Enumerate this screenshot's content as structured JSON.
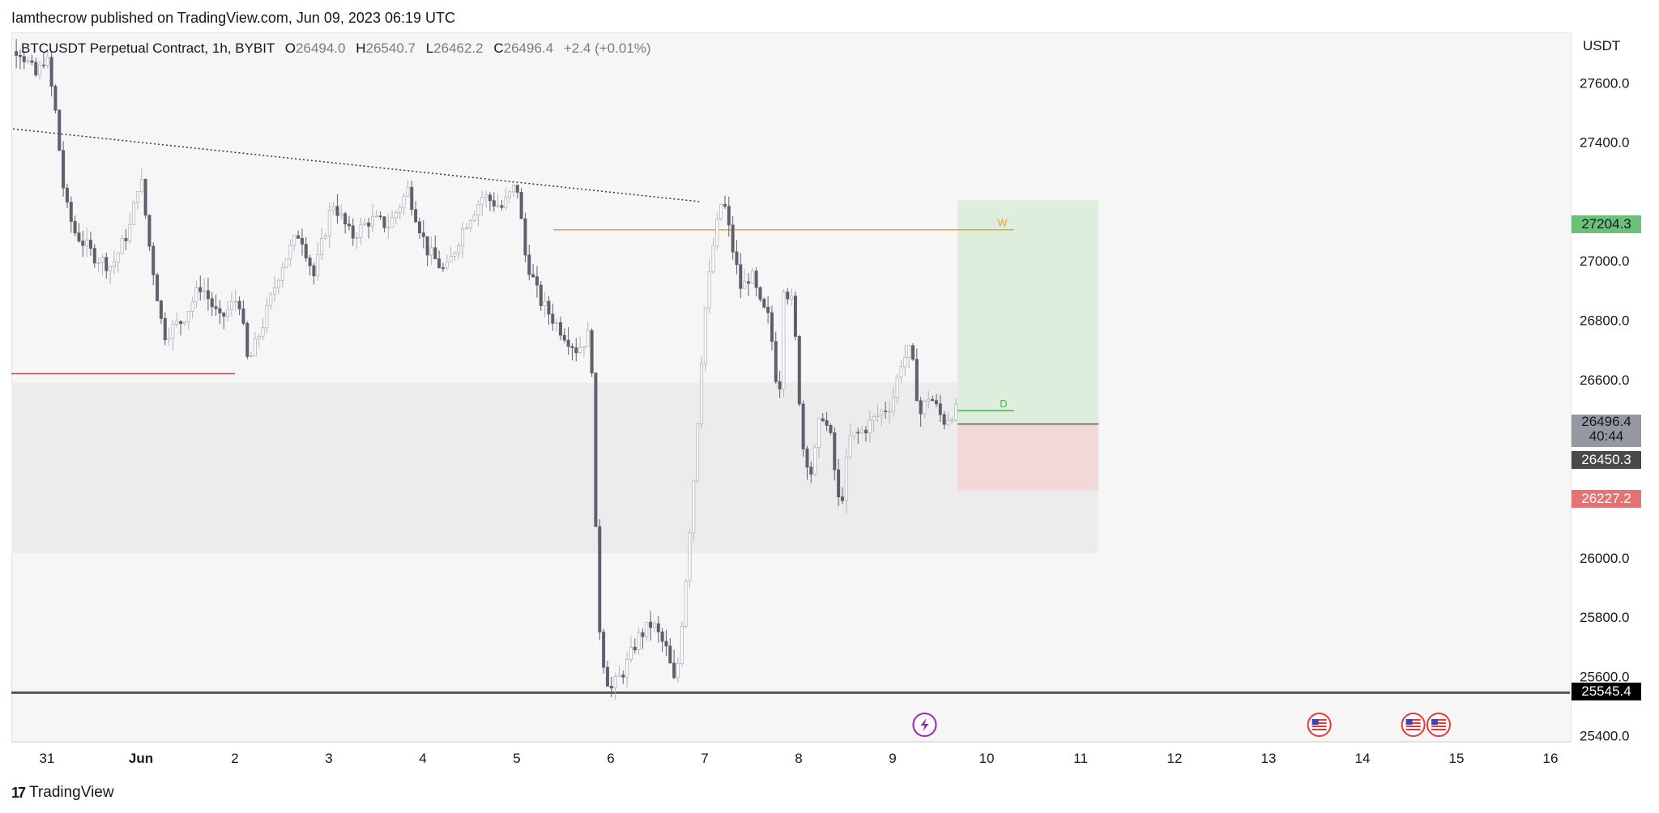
{
  "header": {
    "published_text": "Iamthecrow published on TradingView.com, Jun 09, 2023 06:19 UTC"
  },
  "legend": {
    "symbol": "BTCUSDT Perpetual Contract, 1h, BYBIT",
    "open_label": "O",
    "open": "26494.0",
    "high_label": "H",
    "high": "26540.7",
    "low_label": "L",
    "low": "26462.2",
    "close_label": "C",
    "close": "26496.4",
    "change": "+2.4 (+0.01%)"
  },
  "price_axis": {
    "unit": "USDT"
  },
  "tags": {
    "target": "27204.3",
    "last_price": "26496.4",
    "countdown": "40:44",
    "entry": "26450.3",
    "stop": "26227.2",
    "support": "25545.4"
  },
  "drawing_labels": {
    "w": "W",
    "d": "D"
  },
  "footer": {
    "brand": "TradingView"
  },
  "colors": {
    "bull": "#b2b5be",
    "bear": "#5d606b",
    "target_zone": "#ddeedd",
    "stop_zone": "#f2d8d8",
    "demand_zone": "#ececec",
    "orange_line": "#f0a030",
    "green_line": "#4caf50",
    "red_line": "#e53935",
    "tag_green": "#6cc17a",
    "tag_red": "#e57373",
    "tag_grey": "#9598a1",
    "tag_dark": "#4a4a4a",
    "tag_black": "#000000",
    "event_purple": "#9c27b0",
    "event_red": "#e53935"
  },
  "chart_data": {
    "type": "candlestick",
    "title": "BTCUSDT Perpetual Contract, 1h, BYBIT",
    "y_range": [
      25380,
      27770
    ],
    "y_ticks": [
      25400,
      25600,
      25800,
      26000,
      26200,
      26600,
      26800,
      27000,
      27400,
      27600
    ],
    "x_ticks": [
      {
        "label": "31",
        "day": 30.66
      },
      {
        "label": "Jun",
        "day": 31.66
      },
      {
        "label": "2",
        "day": 32.66
      },
      {
        "label": "3",
        "day": 33.66
      },
      {
        "label": "4",
        "day": 34.66
      },
      {
        "label": "5",
        "day": 35.66
      },
      {
        "label": "6",
        "day": 36.66
      },
      {
        "label": "7",
        "day": 37.66
      },
      {
        "label": "8",
        "day": 38.66
      },
      {
        "label": "9",
        "day": 39.66
      },
      {
        "label": "10",
        "day": 40.66
      },
      {
        "label": "11",
        "day": 41.66
      },
      {
        "label": "12",
        "day": 42.66
      },
      {
        "label": "13",
        "day": 43.66
      },
      {
        "label": "14",
        "day": 44.66
      },
      {
        "label": "15",
        "day": 45.66
      },
      {
        "label": "16",
        "day": 46.66
      }
    ],
    "price_path": [
      [
        30.0,
        27500
      ],
      [
        30.15,
        27660
      ],
      [
        30.35,
        27720
      ],
      [
        30.55,
        27620
      ],
      [
        30.65,
        27700
      ],
      [
        30.75,
        27500
      ],
      [
        30.85,
        27200
      ],
      [
        30.95,
        27100
      ],
      [
        31.15,
        27020
      ],
      [
        31.35,
        26980
      ],
      [
        31.55,
        27120
      ],
      [
        31.65,
        27300
      ],
      [
        31.75,
        27050
      ],
      [
        31.9,
        26750
      ],
      [
        32.1,
        26800
      ],
      [
        32.3,
        26920
      ],
      [
        32.5,
        26800
      ],
      [
        32.7,
        26880
      ],
      [
        32.8,
        26650
      ],
      [
        32.95,
        26780
      ],
      [
        33.15,
        26980
      ],
      [
        33.35,
        27100
      ],
      [
        33.5,
        26950
      ],
      [
        33.7,
        27200
      ],
      [
        33.9,
        27080
      ],
      [
        34.1,
        27140
      ],
      [
        34.3,
        27120
      ],
      [
        34.5,
        27240
      ],
      [
        34.7,
        27040
      ],
      [
        34.9,
        26960
      ],
      [
        35.1,
        27120
      ],
      [
        35.3,
        27220
      ],
      [
        35.5,
        27180
      ],
      [
        35.66,
        27260
      ],
      [
        35.75,
        27020
      ],
      [
        35.9,
        26870
      ],
      [
        36.1,
        26780
      ],
      [
        36.3,
        26700
      ],
      [
        36.45,
        26760
      ],
      [
        36.5,
        26080
      ],
      [
        36.55,
        25700
      ],
      [
        36.65,
        25550
      ],
      [
        36.8,
        25620
      ],
      [
        36.95,
        25730
      ],
      [
        37.1,
        25780
      ],
      [
        37.25,
        25690
      ],
      [
        37.35,
        25560
      ],
      [
        37.45,
        25900
      ],
      [
        37.55,
        26300
      ],
      [
        37.65,
        26800
      ],
      [
        37.75,
        27050
      ],
      [
        37.85,
        27220
      ],
      [
        37.95,
        27050
      ],
      [
        38.05,
        26900
      ],
      [
        38.15,
        26960
      ],
      [
        38.25,
        26850
      ],
      [
        38.35,
        26800
      ],
      [
        38.45,
        26520
      ],
      [
        38.5,
        26920
      ],
      [
        38.6,
        26850
      ],
      [
        38.7,
        26380
      ],
      [
        38.8,
        26280
      ],
      [
        38.9,
        26500
      ],
      [
        39.0,
        26400
      ],
      [
        39.1,
        26150
      ],
      [
        39.2,
        26400
      ],
      [
        39.35,
        26430
      ],
      [
        39.5,
        26480
      ],
      [
        39.65,
        26520
      ],
      [
        39.75,
        26660
      ],
      [
        39.85,
        26700
      ],
      [
        39.95,
        26480
      ],
      [
        40.05,
        26550
      ],
      [
        40.2,
        26460
      ],
      [
        40.3,
        26490
      ],
      [
        40.35,
        26496
      ]
    ],
    "horizontal_lines": [
      {
        "price": 26620,
        "from_day": 30.0,
        "to_day": 32.66,
        "color": "red"
      },
      {
        "price": 27105,
        "from_day": 36.05,
        "to_day": 40.95,
        "label": "W",
        "color": "orange"
      },
      {
        "price": 26496,
        "from_day": 40.35,
        "to_day": 40.95,
        "label": "D",
        "color": "green"
      },
      {
        "price": 25545.4,
        "from_day": 30.0,
        "to_day": 47.5,
        "color": "black"
      }
    ],
    "trendline": {
      "from": [
        30.0,
        27445
      ],
      "to": [
        37.6,
        27200
      ],
      "style": "dotted"
    },
    "zones": [
      {
        "name": "demand",
        "top": 26590,
        "bottom": 26015,
        "from_day": 30.0,
        "to_day": 41.85
      },
      {
        "name": "target",
        "top": 27204.3,
        "bottom": 26450.3,
        "from_day": 40.35,
        "to_day": 41.85
      },
      {
        "name": "stop",
        "top": 26450.3,
        "bottom": 26227.2,
        "from_day": 40.35,
        "to_day": 41.85
      }
    ],
    "events": [
      {
        "day": 40.0,
        "kind": "purple"
      },
      {
        "day": 44.2,
        "kind": "flag"
      },
      {
        "day": 45.2,
        "kind": "flag"
      },
      {
        "day": 45.47,
        "kind": "flag"
      }
    ]
  }
}
